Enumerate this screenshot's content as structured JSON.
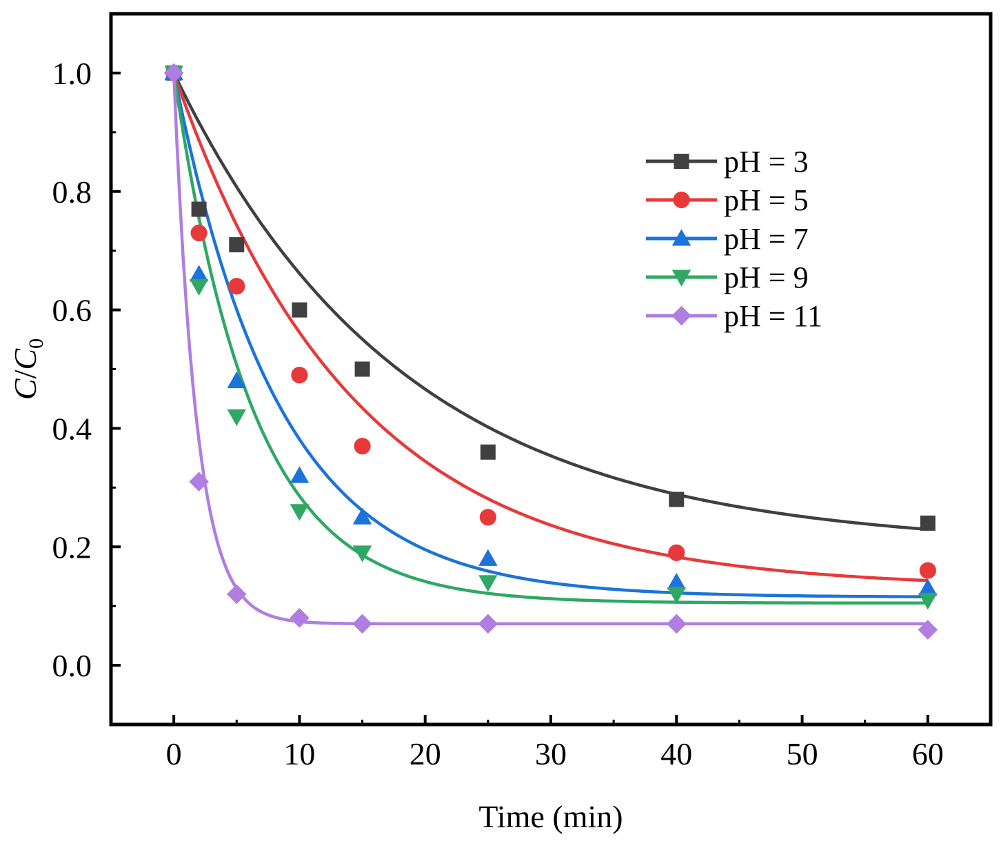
{
  "chart_data": {
    "type": "scatter",
    "title": "",
    "xlabel": "Time (min)",
    "ylabel_main": "C",
    "ylabel_slash": "/",
    "ylabel_sub_base": "C",
    "ylabel_subscript": "0",
    "xlim": [
      -5,
      65
    ],
    "ylim": [
      -0.1,
      1.1
    ],
    "xticks": [
      0,
      10,
      20,
      30,
      40,
      50,
      60
    ],
    "xtick_labels": [
      "0",
      "10",
      "20",
      "30",
      "40",
      "50",
      "60"
    ],
    "yticks": [
      0.0,
      0.2,
      0.4,
      0.6,
      0.8,
      1.0
    ],
    "ytick_labels": [
      "0.0",
      "0.2",
      "0.4",
      "0.6",
      "0.8",
      "1.0"
    ],
    "grid": false,
    "legend_position": "top-right",
    "x": [
      0,
      2,
      5,
      10,
      15,
      25,
      40,
      60
    ],
    "series": [
      {
        "name": "pH = 3",
        "color": "#404040",
        "marker": "square",
        "values": [
          1.0,
          0.77,
          0.71,
          0.6,
          0.5,
          0.36,
          0.28,
          0.24
        ],
        "fit": {
          "c_inf": 0.2,
          "A": 0.8,
          "k": 0.055
        }
      },
      {
        "name": "pH = 5",
        "color": "#e8393a",
        "marker": "circle",
        "values": [
          1.0,
          0.73,
          0.64,
          0.49,
          0.37,
          0.25,
          0.19,
          0.16
        ],
        "fit": {
          "c_inf": 0.13,
          "A": 0.87,
          "k": 0.07
        }
      },
      {
        "name": "pH = 7",
        "color": "#1c73d9",
        "marker": "triangle-up",
        "values": [
          1.0,
          0.66,
          0.48,
          0.32,
          0.25,
          0.18,
          0.14,
          0.13
        ],
        "fit": {
          "c_inf": 0.115,
          "A": 0.885,
          "k": 0.12
        }
      },
      {
        "name": "pH = 9",
        "color": "#2ea863",
        "marker": "triangle-down",
        "values": [
          1.0,
          0.64,
          0.42,
          0.26,
          0.19,
          0.14,
          0.12,
          0.11
        ],
        "fit": {
          "c_inf": 0.105,
          "A": 0.895,
          "k": 0.16
        }
      },
      {
        "name": "pH = 11",
        "color": "#b07de0",
        "marker": "diamond",
        "values": [
          1.0,
          0.31,
          0.12,
          0.08,
          0.07,
          0.07,
          0.07,
          0.06
        ],
        "fit": {
          "c_inf": 0.07,
          "A": 0.93,
          "k": 0.55
        }
      }
    ]
  }
}
